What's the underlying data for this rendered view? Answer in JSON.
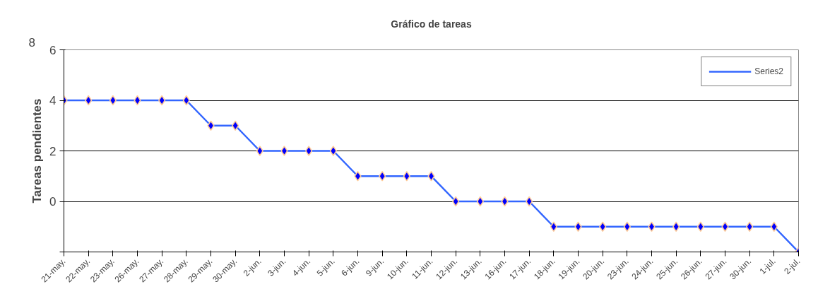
{
  "chart_data": {
    "type": "line",
    "title": "Gráfico de tareas",
    "ylabel": "Tareas pendientes",
    "categories": [
      "21-may.",
      "22-may.",
      "23-may.",
      "26-may.",
      "27-may.",
      "28-may.",
      "29-may.",
      "30-may.",
      "2-jun.",
      "3-jun.",
      "4-jun.",
      "5-jun.",
      "6-jun.",
      "9-jun.",
      "10-jun.",
      "11-jun.",
      "12-jun.",
      "13-jun.",
      "16-jun.",
      "17-jun.",
      "18-jun.",
      "19-jun.",
      "20-jun.",
      "23-jun.",
      "24-jun.",
      "25-jun.",
      "26-jun.",
      "27-jun.",
      "30-jun.",
      "1-jul.",
      "2-jul."
    ],
    "series": [
      {
        "name": "Series2",
        "color": "#3366ff",
        "values": [
          4,
          4,
          4,
          4,
          4,
          4,
          3,
          3,
          2,
          2,
          2,
          2,
          1,
          1,
          1,
          1,
          0,
          0,
          0,
          0,
          -1,
          -1,
          -1,
          -1,
          -1,
          -1,
          -1,
          -1,
          -1,
          -1,
          -2
        ]
      }
    ],
    "ylim": [
      -2,
      6
    ],
    "yticks": [
      {
        "value": -2,
        "label": null
      },
      0,
      2,
      4,
      6
    ],
    "annotations": [
      "8"
    ],
    "grid": "y",
    "legend": "top right",
    "marker": "diamond",
    "line_style": "solid"
  }
}
